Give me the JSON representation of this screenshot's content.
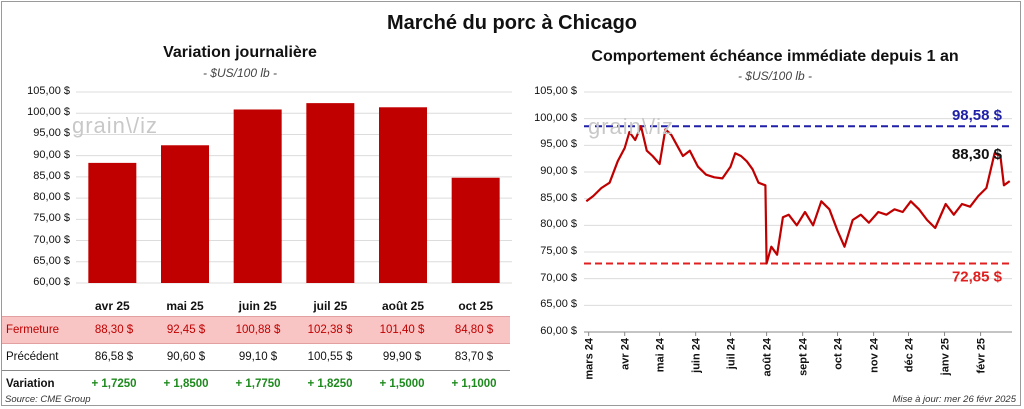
{
  "title": "Marché du porc à Chicago",
  "left": {
    "title": "Variation journalière",
    "unit": "- $US/100 lb -",
    "yticks": [
      "105,00 $",
      "100,00 $",
      "95,00 $",
      "90,00 $",
      "85,00 $",
      "80,00 $",
      "75,00 $",
      "70,00 $",
      "65,00 $",
      "60,00 $"
    ],
    "watermark": "grain\\/iz",
    "table": {
      "row_labels": {
        "close": "Fermeture",
        "prev": "Précédent",
        "var": "Variation"
      },
      "close": [
        "88,30  $",
        "92,45  $",
        "100,88  $",
        "102,38  $",
        "101,40  $",
        "84,80  $"
      ],
      "prev": [
        "86,58  $",
        "90,60  $",
        "99,10  $",
        "100,55  $",
        "99,90  $",
        "83,70  $"
      ],
      "var": [
        "+ 1,7250",
        "+ 1,8500",
        "+ 1,7750",
        "+ 1,8250",
        "+ 1,5000",
        "+ 1,1000"
      ]
    }
  },
  "right": {
    "title": "Comportement  échéance immédiate depuis 1 an",
    "unit": "- $US/100 lb -",
    "yticks": [
      "105,00 $",
      "100,00 $",
      "95,00 $",
      "90,00 $",
      "85,00 $",
      "80,00 $",
      "75,00 $",
      "70,00 $",
      "65,00 $",
      "60,00 $"
    ],
    "xticks": [
      "mars 24",
      "avr 24",
      "mai 24",
      "juin 24",
      "juil 24",
      "août 24",
      "sept 24",
      "oct 24",
      "nov 24",
      "déc 24",
      "janv 25",
      "févr 25"
    ],
    "watermark": "grain\\/iz",
    "max_label": "98,58 $",
    "min_label": "72,85 $",
    "last_label": "88,30 $"
  },
  "source": "Source: CME Group",
  "updated": "Mise à jour: mer 26 févr 2025",
  "colors": {
    "bar": "#c00000",
    "line": "#c00000",
    "max_line": "#1f1fa8",
    "min_line": "#e02020",
    "positive": "#1e8a1e"
  },
  "chart_data": [
    {
      "type": "bar",
      "title": "Variation journalière",
      "categories": [
        "avr 25",
        "mai 25",
        "juin 25",
        "juil 25",
        "août 25",
        "oct 25"
      ],
      "values": [
        88.3,
        92.45,
        100.88,
        102.38,
        101.4,
        84.8
      ],
      "ylim": [
        60,
        105
      ],
      "grid": true
    },
    {
      "type": "line",
      "title": "Comportement  échéance immédiate depuis 1 an",
      "ylim": [
        60,
        105
      ],
      "grid": true,
      "x": [
        "2024-02-28",
        "2024-03-05",
        "2024-03-12",
        "2024-03-19",
        "2024-03-26",
        "2024-04-01",
        "2024-04-05",
        "2024-04-10",
        "2024-04-15",
        "2024-04-20",
        "2024-04-25",
        "2024-05-01",
        "2024-05-06",
        "2024-05-11",
        "2024-05-16",
        "2024-05-21",
        "2024-05-27",
        "2024-06-03",
        "2024-06-10",
        "2024-06-17",
        "2024-06-24",
        "2024-07-01",
        "2024-07-05",
        "2024-07-10",
        "2024-07-15",
        "2024-07-20",
        "2024-07-25",
        "2024-07-31",
        "2024-08-01",
        "2024-08-05",
        "2024-08-10",
        "2024-08-15",
        "2024-08-20",
        "2024-08-27",
        "2024-09-03",
        "2024-09-10",
        "2024-09-17",
        "2024-09-24",
        "2024-10-01",
        "2024-10-07",
        "2024-10-14",
        "2024-10-21",
        "2024-10-28",
        "2024-11-05",
        "2024-11-12",
        "2024-11-19",
        "2024-11-26",
        "2024-12-03",
        "2024-12-10",
        "2024-12-17",
        "2024-12-24",
        "2025-01-02",
        "2025-01-09",
        "2025-01-16",
        "2025-01-23",
        "2025-01-30",
        "2025-02-06",
        "2025-02-13",
        "2025-02-18",
        "2025-02-21",
        "2025-02-26"
      ],
      "series": [
        {
          "values": [
            84.5,
            85.5,
            87.0,
            88.0,
            92.0,
            94.5,
            97.5,
            96.0,
            98.58,
            94.0,
            93.0,
            91.5,
            98.0,
            97.0,
            95.0,
            93.0,
            94.0,
            91.0,
            89.5,
            89.0,
            88.8,
            91.0,
            93.5,
            93.0,
            92.0,
            90.5,
            88.0,
            87.5,
            72.85,
            76.0,
            74.5,
            81.5,
            82.0,
            80.0,
            82.5,
            80.0,
            84.5,
            83.0,
            79.0,
            76.0,
            81.0,
            82.0,
            80.5,
            82.5,
            82.0,
            83.0,
            82.5,
            84.5,
            83.0,
            81.0,
            79.5,
            84.0,
            82.0,
            84.0,
            83.5,
            85.5,
            87.0,
            93.5,
            93.0,
            87.5,
            88.3
          ]
        }
      ]
    }
  ]
}
